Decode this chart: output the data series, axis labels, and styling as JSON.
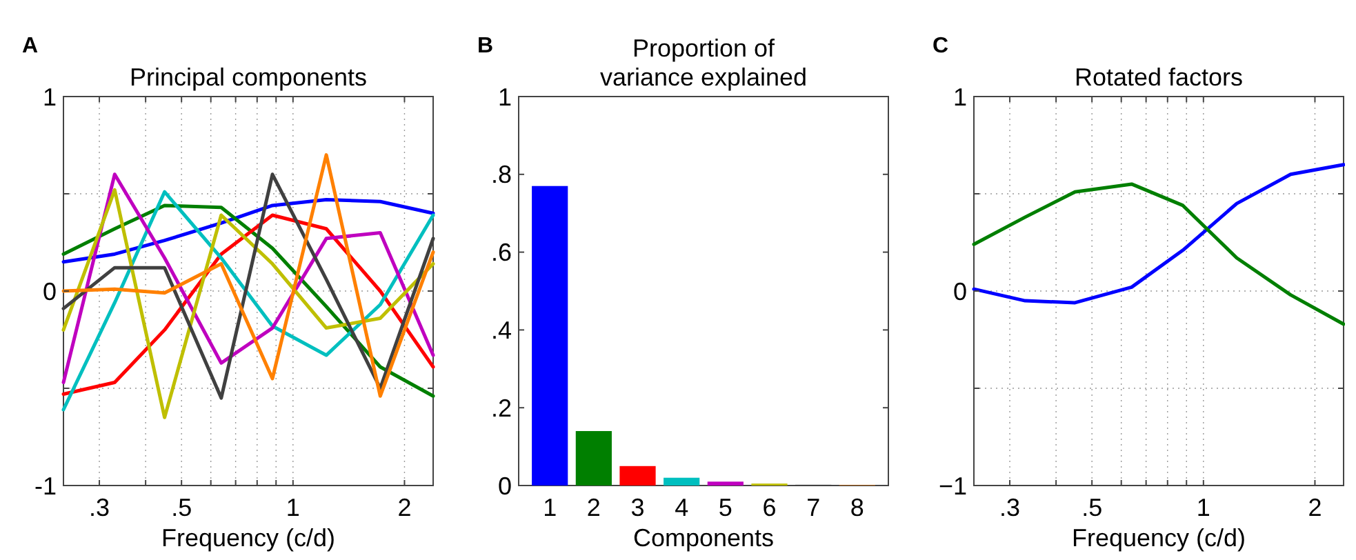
{
  "chart_data": [
    {
      "type": "line",
      "title": "Principal components",
      "annotations": [
        "A"
      ],
      "xlabel": "Frequency (c/d)",
      "log": "x",
      "grid": true,
      "x": [
        0.24,
        0.33,
        0.45,
        0.64,
        0.88,
        1.23,
        1.72,
        2.39
      ],
      "xlim": [
        0.24,
        2.39
      ],
      "xticks": [
        {
          "value": 0.3,
          "label": ".3"
        },
        {
          "value": 0.4,
          "label": null
        },
        {
          "value": 0.5,
          "label": ".5"
        },
        {
          "value": 0.6,
          "label": null
        },
        {
          "value": 0.7,
          "label": null
        },
        {
          "value": 0.8,
          "label": null
        },
        {
          "value": 0.9,
          "label": null
        },
        {
          "value": 1,
          "label": "1"
        },
        {
          "value": 2,
          "label": "2"
        }
      ],
      "ylim": [
        -1,
        1
      ],
      "yticks": [
        -1,
        {
          "value": -0.5,
          "label": null
        },
        0,
        {
          "value": 0.5,
          "label": null
        },
        1
      ],
      "series": [
        {
          "color": "#0000ff",
          "values": [
            0.15,
            0.19,
            0.26,
            0.35,
            0.44,
            0.47,
            0.46,
            0.4
          ]
        },
        {
          "color": "#007f00",
          "values": [
            0.19,
            0.32,
            0.44,
            0.43,
            0.22,
            -0.08,
            -0.39,
            -0.54
          ]
        },
        {
          "color": "#ff0000",
          "values": [
            -0.53,
            -0.47,
            -0.2,
            0.19,
            0.39,
            0.32,
            0,
            -0.39
          ]
        },
        {
          "color": "#00bfbf",
          "values": [
            -0.61,
            -0.06,
            0.51,
            0.17,
            -0.18,
            -0.33,
            -0.07,
            0.39
          ]
        },
        {
          "color": "#bf00bf",
          "values": [
            -0.47,
            0.6,
            0.17,
            -0.37,
            -0.19,
            0.27,
            0.3,
            -0.33
          ]
        },
        {
          "color": "#bfbf00",
          "values": [
            -0.2,
            0.52,
            -0.65,
            0.39,
            0.14,
            -0.19,
            -0.14,
            0.14
          ]
        },
        {
          "color": "#404040",
          "values": [
            -0.09,
            0.12,
            0.12,
            -0.55,
            0.6,
            0.06,
            -0.5,
            0.27
          ]
        },
        {
          "color": "#ff8000",
          "values": [
            0,
            0.01,
            -0.01,
            0.14,
            -0.45,
            0.7,
            -0.54,
            0.2
          ]
        }
      ]
    },
    {
      "type": "bar",
      "title": "Proportion of\nvariance explained",
      "annotations": [
        "B"
      ],
      "xlabel": "Components",
      "categories": [
        "1",
        "2",
        "3",
        "4",
        "5",
        "6",
        "7",
        "8"
      ],
      "values": [
        0.77,
        0.14,
        0.05,
        0.02,
        0.01,
        0.005,
        0.002,
        0.001
      ],
      "colors": [
        "#0000ff",
        "#007f00",
        "#ff0000",
        "#00bfbf",
        "#bf00bf",
        "#bfbf00",
        "#404040",
        "#ff8000"
      ],
      "ylim": [
        0,
        1
      ],
      "yticks": [
        0,
        {
          "value": 0.2,
          "label": ".2"
        },
        {
          "value": 0.4,
          "label": ".4"
        },
        {
          "value": 0.6,
          "label": ".6"
        },
        {
          "value": 0.8,
          "label": ".8"
        },
        1
      ]
    },
    {
      "type": "line",
      "title": "Rotated factors",
      "annotations": [
        "C"
      ],
      "xlabel": "Frequency (c/d)",
      "log": "x",
      "grid": true,
      "x": [
        0.24,
        0.33,
        0.45,
        0.64,
        0.88,
        1.23,
        1.72,
        2.39
      ],
      "xlim": [
        0.24,
        2.39
      ],
      "xticks": [
        {
          "value": 0.3,
          "label": ".3"
        },
        {
          "value": 0.4,
          "label": null
        },
        {
          "value": 0.5,
          "label": ".5"
        },
        {
          "value": 0.6,
          "label": null
        },
        {
          "value": 0.7,
          "label": null
        },
        {
          "value": 0.8,
          "label": null
        },
        {
          "value": 0.9,
          "label": null
        },
        {
          "value": 1,
          "label": "1"
        },
        {
          "value": 2,
          "label": "2"
        }
      ],
      "ylim": [
        -1,
        1
      ],
      "yticks": [
        {
          "value": -1,
          "label": "−1"
        },
        {
          "value": -0.5,
          "label": null
        },
        0,
        {
          "value": 0.5,
          "label": null
        },
        1
      ],
      "series": [
        {
          "color": "#0000ff",
          "values": [
            0.01,
            -0.05,
            -0.06,
            0.02,
            0.21,
            0.45,
            0.6,
            0.65
          ]
        },
        {
          "color": "#007f00",
          "values": [
            0.24,
            0.38,
            0.51,
            0.55,
            0.44,
            0.17,
            -0.02,
            -0.17
          ]
        }
      ]
    }
  ]
}
